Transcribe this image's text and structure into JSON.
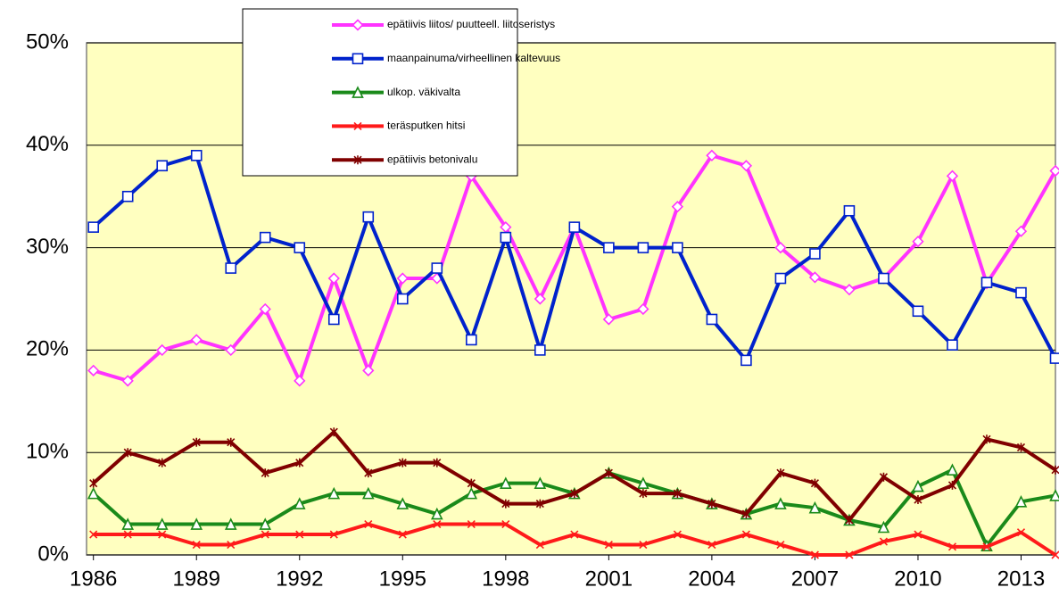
{
  "chart_data": {
    "type": "line",
    "x": [
      1986,
      1987,
      1988,
      1989,
      1990,
      1991,
      1992,
      1993,
      1994,
      1995,
      1996,
      1997,
      1998,
      1999,
      2000,
      2001,
      2002,
      2003,
      2004,
      2005,
      2006,
      2007,
      2008,
      2009,
      2010,
      2011,
      2012,
      2013,
      2014
    ],
    "xlim": [
      1985.8,
      2014
    ],
    "xticks": [
      1986,
      1989,
      1992,
      1995,
      1998,
      2001,
      2004,
      2007,
      2010,
      2013
    ],
    "ylim": [
      0,
      50
    ],
    "yticks": [
      {
        "value": 0,
        "label": "0%"
      },
      {
        "value": 10,
        "label": "10%"
      },
      {
        "value": 20,
        "label": "20%"
      },
      {
        "value": 30,
        "label": "30%"
      },
      {
        "value": 40,
        "label": "40%"
      },
      {
        "value": 50,
        "label": "50%"
      }
    ],
    "grid": true,
    "legend": "upper-center",
    "series": [
      {
        "name": "epätiivis liitos/ puutteell. liitoseristys",
        "color": "#ff33ff",
        "marker": "diamond",
        "values": [
          18,
          17,
          20,
          21,
          20,
          24,
          17,
          27,
          18,
          27,
          27,
          37,
          32,
          25,
          32,
          23,
          24,
          34,
          39,
          38,
          30,
          27.1,
          25.9,
          27,
          30.6,
          37,
          26.5,
          31.6,
          37.5
        ]
      },
      {
        "name": "maanpainuma/virheellinen kaltevuus",
        "color": "#0022cc",
        "marker": "square",
        "values": [
          32,
          35,
          38,
          39,
          28,
          31,
          30,
          23,
          33,
          25,
          28,
          21,
          31,
          20,
          32,
          30,
          30,
          30,
          23,
          19,
          27,
          29.4,
          33.6,
          27,
          23.8,
          20.5,
          26.6,
          25.6,
          19.2
        ]
      },
      {
        "name": "ulkop. väkivalta",
        "color": "#1a8a1a",
        "marker": "triangle",
        "values": [
          6,
          3,
          3,
          3,
          3,
          3,
          5,
          6,
          6,
          5,
          4,
          6,
          7,
          7,
          6,
          8,
          7,
          6,
          5,
          4,
          5,
          4.6,
          3.4,
          2.7,
          6.7,
          8.3,
          0.9,
          5.2,
          5.8
        ]
      },
      {
        "name": "teräsputken hitsi",
        "color": "#ff1a1a",
        "marker": "x",
        "values": [
          2,
          2,
          2,
          1,
          1,
          2,
          2,
          2,
          3,
          2,
          3,
          3,
          3,
          1,
          2,
          1,
          1,
          2,
          1,
          2,
          1,
          0,
          0,
          1.3,
          2,
          0.8,
          0.8,
          2.2,
          0
        ]
      },
      {
        "name": "epätiivis betonivalu",
        "color": "#800000",
        "marker": "star",
        "values": [
          7,
          10,
          9,
          11,
          11,
          8,
          9,
          12,
          8,
          9,
          9,
          7,
          5,
          5,
          6,
          8,
          6,
          6,
          5,
          4,
          8,
          7,
          3.4,
          7.6,
          5.4,
          6.8,
          11.3,
          10.5,
          8.3
        ]
      }
    ]
  }
}
